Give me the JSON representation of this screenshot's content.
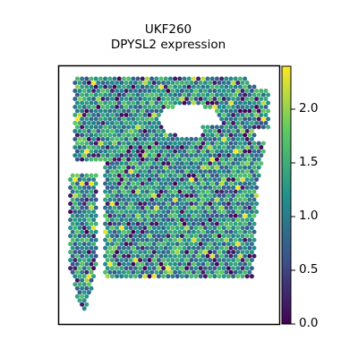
{
  "chart_data": {
    "type": "heatmap",
    "subtype": "spatial-scatter",
    "title_line1": "UKF260",
    "title_line2": "DPYSL2 expression",
    "xlabel": "",
    "ylabel": "",
    "colormap": "viridis",
    "colormap_stops": [
      "#440154",
      "#3b528b",
      "#21918c",
      "#5ec962",
      "#fde725"
    ],
    "value_range": [
      0.0,
      2.4
    ],
    "colorbar": {
      "ticks": [
        0.0,
        0.5,
        1.0,
        1.5,
        2.0
      ],
      "tick_labels": [
        "0.0",
        "0.5",
        "1.0",
        "1.5",
        "2.0"
      ],
      "placement": "right"
    },
    "grid": false,
    "typical_value": 1.1,
    "spot_count_estimate": 3800
  }
}
